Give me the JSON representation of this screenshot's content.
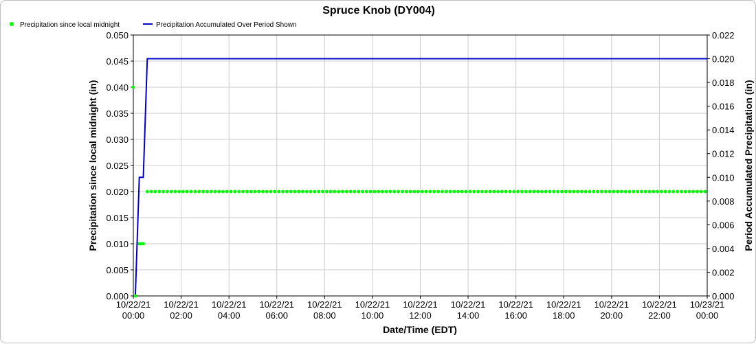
{
  "chart_data": {
    "type": "line",
    "title": "Spruce Knob (DY004)",
    "xlabel": "Date/Time (EDT)",
    "ylabel_left": "Precipitation since local midnight (in)",
    "ylabel_right": "Period Accumulated Precipitation (in)",
    "x_ticks": [
      {
        "date": "10/22/21",
        "time": "00:00",
        "hours": 0
      },
      {
        "date": "10/22/21",
        "time": "02:00",
        "hours": 2
      },
      {
        "date": "10/22/21",
        "time": "04:00",
        "hours": 4
      },
      {
        "date": "10/22/21",
        "time": "06:00",
        "hours": 6
      },
      {
        "date": "10/22/21",
        "time": "08:00",
        "hours": 8
      },
      {
        "date": "10/22/21",
        "time": "10:00",
        "hours": 10
      },
      {
        "date": "10/22/21",
        "time": "12:00",
        "hours": 12
      },
      {
        "date": "10/22/21",
        "time": "14:00",
        "hours": 14
      },
      {
        "date": "10/22/21",
        "time": "16:00",
        "hours": 16
      },
      {
        "date": "10/22/21",
        "time": "18:00",
        "hours": 18
      },
      {
        "date": "10/22/21",
        "time": "20:00",
        "hours": 20
      },
      {
        "date": "10/22/21",
        "time": "22:00",
        "hours": 22
      },
      {
        "date": "10/23/21",
        "time": "00:00",
        "hours": 24
      }
    ],
    "xlim": [
      0,
      24
    ],
    "y_left_ticks": [
      "0.000",
      "0.005",
      "0.010",
      "0.015",
      "0.020",
      "0.025",
      "0.030",
      "0.035",
      "0.040",
      "0.045",
      "0.050"
    ],
    "y_left_lim": [
      0,
      0.05
    ],
    "y_right_ticks": [
      "0.000",
      "0.002",
      "0.004",
      "0.006",
      "0.008",
      "0.010",
      "0.012",
      "0.014",
      "0.016",
      "0.018",
      "0.020",
      "0.022"
    ],
    "y_right_lim": [
      0,
      0.022
    ],
    "grid": true,
    "legend_position": "top-left",
    "series": [
      {
        "name": "Precipitation since local midnight",
        "axis": "left",
        "style": "points",
        "color": "#00ff00",
        "points": [
          {
            "x": "10/22/21 00:00",
            "y": 0.04
          },
          {
            "x": "10/22/21 00:05",
            "y": 0.0
          },
          {
            "x": "10/22/21 00:15",
            "y": 0.01
          },
          {
            "x": "10/22/21 00:20",
            "y": 0.01
          },
          {
            "x": "10/22/21 00:25",
            "y": 0.01
          }
        ],
        "constant_run": {
          "from": "10/22/21 00:35",
          "to": "10/23/21 00:00",
          "step_minutes": 10,
          "y": 0.02
        }
      },
      {
        "name": "Precipitation Accumulated Over Period Shown",
        "axis": "right",
        "style": "line",
        "color": "#0000cc",
        "points": [
          {
            "x": "10/22/21 00:05",
            "y": 0.0
          },
          {
            "x": "10/22/21 00:15",
            "y": 0.01
          },
          {
            "x": "10/22/21 00:25",
            "y": 0.01
          },
          {
            "x": "10/22/21 00:35",
            "y": 0.02
          },
          {
            "x": "10/23/21 00:00",
            "y": 0.02
          }
        ]
      }
    ]
  }
}
